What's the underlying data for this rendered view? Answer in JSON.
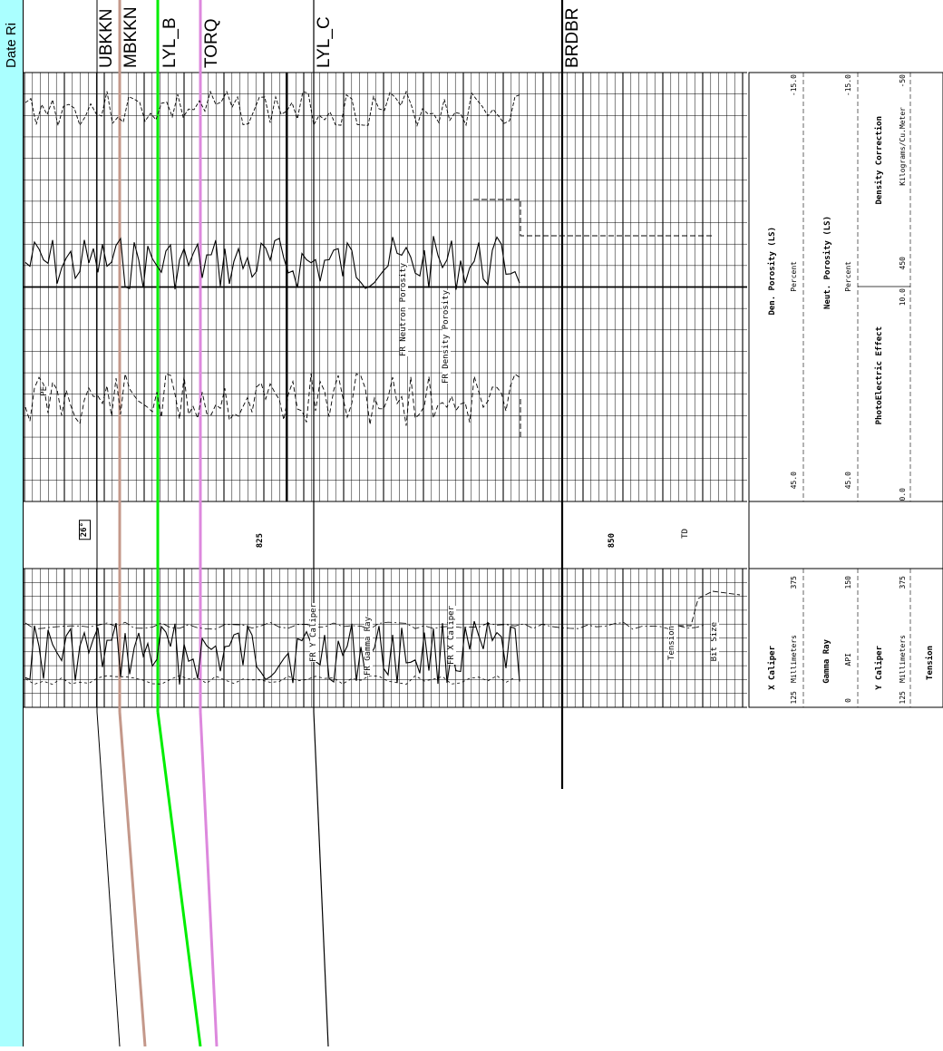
{
  "sidebar": {
    "label": "Date Ri"
  },
  "formation_tops": [
    {
      "label": "UBKKN",
      "color": "#000000"
    },
    {
      "label": "MBKKN",
      "color": "#c4988a"
    },
    {
      "label": "LYL_B",
      "color": "#00ee00"
    },
    {
      "label": "TORQ",
      "color": "#dd88dd"
    },
    {
      "label": "LYL_C",
      "color": "#000000"
    },
    {
      "label": "BRDBR",
      "color": "#000000"
    }
  ],
  "depth_track": {
    "angle": "26°",
    "depth_825": "825",
    "depth_850": "850",
    "td": "TD"
  },
  "curve_labels": {
    "pe": "PE",
    "neutron": "FR Neutron Porosity",
    "density": "FR Density Porosity",
    "y_caliper": "FR Y Caliper",
    "gamma": "FR Gamma Ray",
    "x_caliper": "FR X Caliper",
    "tension": "Tension",
    "bit_size": "Bit Size"
  },
  "header_right": {
    "den_title": "Den. Porosity (LS)",
    "den_unit": "Percent",
    "den_min": "45.0",
    "den_max": "-15.0",
    "neut_title": "Neut. Porosity (LS)",
    "neut_unit": "Percent",
    "neut_min": "45.0",
    "neut_max": "-15.0",
    "pe_title": "PhotoElectric Effect",
    "pe_min": "0.0",
    "pe_max": "10.0",
    "dc_title": "Density Correction",
    "dc_unit": "Kilograms/Cu.Meter",
    "dc_min": "450",
    "dc_max": "-50"
  },
  "header_left": {
    "xcal_title": "X Caliper",
    "xcal_unit": "Millimeters",
    "xcal_min": "125",
    "xcal_max": "375",
    "gr_title": "Gamma Ray",
    "gr_unit": "API",
    "gr_min": "0",
    "gr_max": "150",
    "ycal_title": "Y Caliper",
    "ycal_unit": "Millimeters",
    "ycal_min": "125",
    "ycal_max": "375",
    "tension_title": "Tension"
  }
}
